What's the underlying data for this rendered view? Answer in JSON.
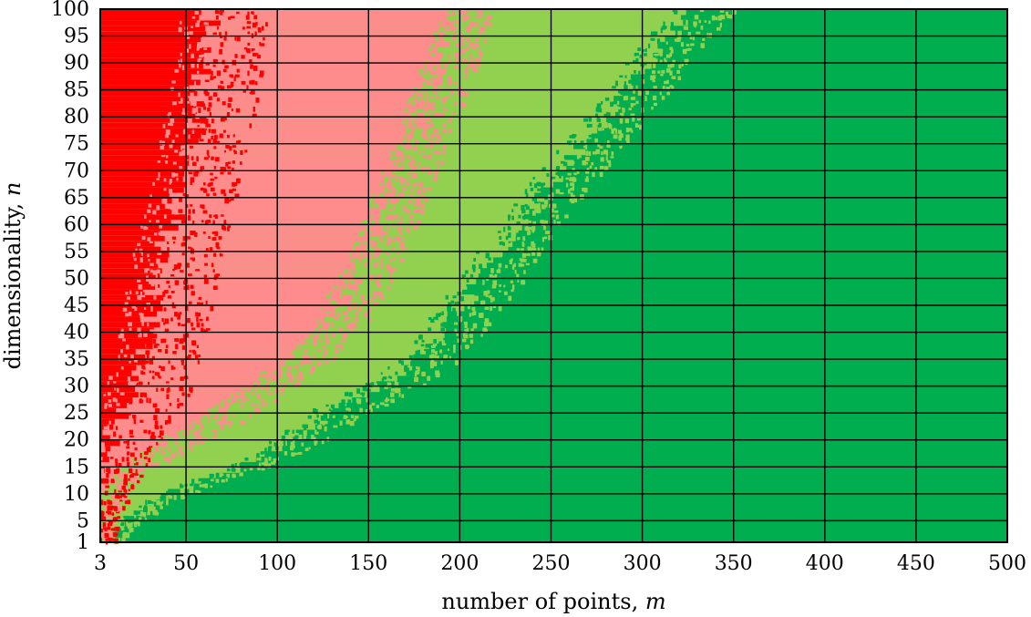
{
  "chart_data": {
    "type": "heatmap",
    "title": "",
    "xlabel": {
      "text": "number of points, ",
      "var": "m"
    },
    "ylabel": {
      "text": "dimensionality, ",
      "var": "n"
    },
    "xlim": [
      3,
      500
    ],
    "ylim": [
      1,
      100
    ],
    "x_ticks": [
      {
        "value": 3,
        "label": "3"
      },
      {
        "value": 50,
        "label": "50"
      },
      {
        "value": 100,
        "label": "100"
      },
      {
        "value": 150,
        "label": "150"
      },
      {
        "value": 200,
        "label": "200"
      },
      {
        "value": 250,
        "label": "250"
      },
      {
        "value": 300,
        "label": "300"
      },
      {
        "value": 350,
        "label": "350"
      },
      {
        "value": 400,
        "label": "400"
      },
      {
        "value": 450,
        "label": "450"
      },
      {
        "value": 500,
        "label": "500"
      }
    ],
    "y_ticks": [
      {
        "value": 1,
        "label": "1"
      },
      {
        "value": 5,
        "label": "5"
      },
      {
        "value": 10,
        "label": "10"
      },
      {
        "value": 15,
        "label": "15"
      },
      {
        "value": 20,
        "label": "20"
      },
      {
        "value": 25,
        "label": "25"
      },
      {
        "value": 30,
        "label": "30"
      },
      {
        "value": 35,
        "label": "35"
      },
      {
        "value": 40,
        "label": "40"
      },
      {
        "value": 45,
        "label": "45"
      },
      {
        "value": 50,
        "label": "50"
      },
      {
        "value": 55,
        "label": "55"
      },
      {
        "value": 60,
        "label": "60"
      },
      {
        "value": 65,
        "label": "65"
      },
      {
        "value": 70,
        "label": "70"
      },
      {
        "value": 75,
        "label": "75"
      },
      {
        "value": 80,
        "label": "80"
      },
      {
        "value": 85,
        "label": "85"
      },
      {
        "value": 90,
        "label": "90"
      },
      {
        "value": 95,
        "label": "95"
      },
      {
        "value": 100,
        "label": "100"
      }
    ],
    "grid": true,
    "legend": "none",
    "regions": [
      {
        "color": "#ff0000",
        "boundary_x": [
          [
            1,
            3
          ],
          [
            5,
            3
          ],
          [
            10,
            3
          ],
          [
            15,
            5
          ],
          [
            20,
            8
          ],
          [
            25,
            14
          ],
          [
            30,
            22
          ],
          [
            35,
            26
          ],
          [
            40,
            30
          ],
          [
            45,
            32
          ],
          [
            50,
            35
          ],
          [
            55,
            38
          ],
          [
            60,
            42
          ],
          [
            65,
            45
          ],
          [
            70,
            48
          ],
          [
            75,
            52
          ],
          [
            80,
            55
          ],
          [
            85,
            58
          ],
          [
            90,
            60
          ],
          [
            95,
            62
          ],
          [
            100,
            64
          ]
        ]
      },
      {
        "color": "#ff8c8c",
        "boundary_x": [
          [
            1,
            3
          ],
          [
            5,
            3
          ],
          [
            10,
            5
          ],
          [
            15,
            20
          ],
          [
            20,
            45
          ],
          [
            25,
            68
          ],
          [
            30,
            92
          ],
          [
            35,
            110
          ],
          [
            40,
            125
          ],
          [
            45,
            135
          ],
          [
            50,
            143
          ],
          [
            55,
            150
          ],
          [
            60,
            156
          ],
          [
            65,
            162
          ],
          [
            70,
            168
          ],
          [
            75,
            174
          ],
          [
            80,
            179
          ],
          [
            85,
            184
          ],
          [
            90,
            190
          ],
          [
            95,
            195
          ],
          [
            100,
            200
          ]
        ]
      },
      {
        "color": "#92d050",
        "boundary_x": [
          [
            1,
            8
          ],
          [
            5,
            18
          ],
          [
            10,
            40
          ],
          [
            15,
            80
          ],
          [
            20,
            108
          ],
          [
            25,
            128
          ],
          [
            30,
            155
          ],
          [
            35,
            178
          ],
          [
            40,
            190
          ],
          [
            45,
            200
          ],
          [
            50,
            212
          ],
          [
            55,
            222
          ],
          [
            60,
            232
          ],
          [
            65,
            243
          ],
          [
            70,
            256
          ],
          [
            75,
            268
          ],
          [
            80,
            280
          ],
          [
            85,
            292
          ],
          [
            90,
            302
          ],
          [
            95,
            315
          ],
          [
            100,
            330
          ]
        ]
      },
      {
        "color": "#00ad4f"
      }
    ]
  }
}
